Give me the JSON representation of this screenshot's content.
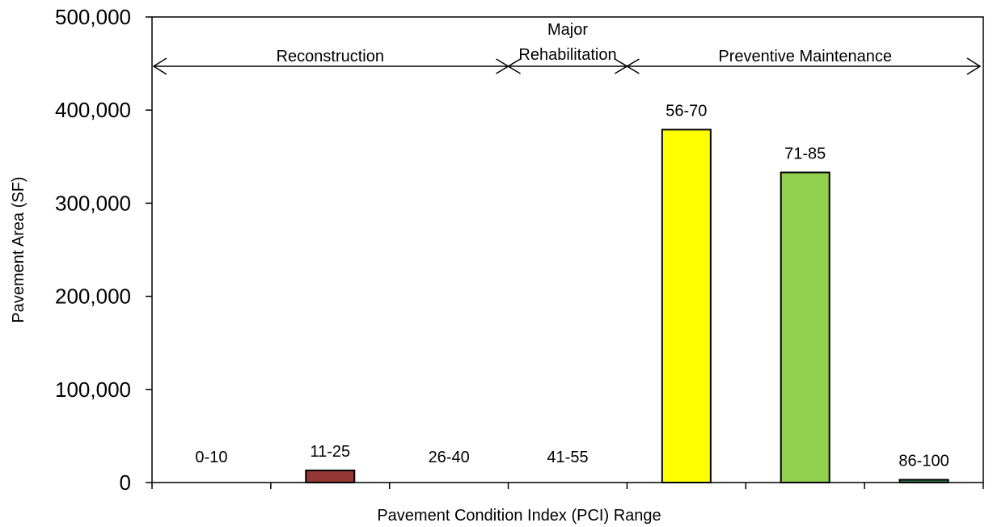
{
  "chart_data": {
    "type": "bar",
    "title": "",
    "xlabel": "Pavement Condition Index (PCI) Range",
    "ylabel": "Pavement  Area (SF)",
    "ylim": [
      0,
      500000
    ],
    "yticks": [
      "0",
      "100,000",
      "200,000",
      "300,000",
      "400,000",
      "500,000"
    ],
    "ytick_values": [
      0,
      100000,
      200000,
      300000,
      400000,
      500000
    ],
    "categories": [
      "0-10",
      "11-25",
      "26-40",
      "41-55",
      "56-70",
      "71-85",
      "86-100"
    ],
    "values": [
      0,
      13000,
      0,
      0,
      379000,
      333000,
      3000
    ],
    "colors": [
      "#ffffff",
      "#943634",
      "#ffffff",
      "#ffffff",
      "#ffff00",
      "#92d050",
      "#2e7d4f"
    ],
    "grid": false,
    "legend": "none",
    "zones": [
      {
        "label": "Reconstruction",
        "from_category": 0,
        "to_category": 2
      },
      {
        "label_lines": [
          "Major",
          "Rehabilitation"
        ],
        "from_category": 3,
        "to_category": 3
      },
      {
        "label": "Preventive Maintenance",
        "from_category": 4,
        "to_category": 6
      }
    ]
  }
}
